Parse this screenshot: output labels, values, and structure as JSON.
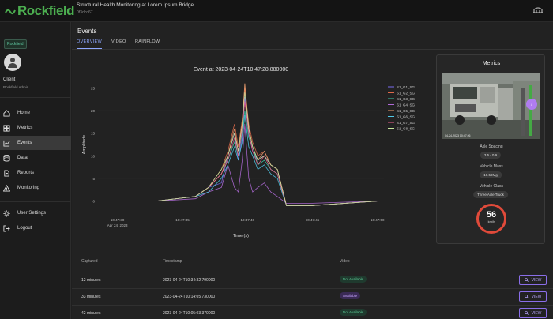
{
  "header": {
    "logo": "Rockfield",
    "title": "Structural Health Monitoring at Lorem Ipsum Bridge",
    "id": "0f3dcd67"
  },
  "sidebar": {
    "org": "Rockfield",
    "user_name": "Client",
    "user_role": "Rockfield Admin",
    "items": [
      {
        "label": "Home",
        "icon": "home-icon"
      },
      {
        "label": "Metrics",
        "icon": "grid-icon"
      },
      {
        "label": "Events",
        "icon": "line-chart-icon",
        "active": true
      },
      {
        "label": "Data",
        "icon": "database-icon"
      },
      {
        "label": "Reports",
        "icon": "document-icon"
      },
      {
        "label": "Monitoring",
        "icon": "warning-icon"
      },
      {
        "label": "User Settings",
        "icon": "gear-icon"
      },
      {
        "label": "Logout",
        "icon": "logout-icon"
      }
    ]
  },
  "main": {
    "title": "Events",
    "tabs": [
      "OVERVIEW",
      "VIDEO",
      "RAINFLOW"
    ]
  },
  "chart_data": {
    "type": "line",
    "title": "Event at 2023-04-24T10:47:28.880000",
    "xlabel": "Time (s)",
    "ylabel": "Amplitude",
    "x_ticks": [
      "10:47:30",
      "10:47:35",
      "10:47:40",
      "10:47:45",
      "10:47:50"
    ],
    "x_tick_sub": "Apr 24, 2023",
    "y_ticks": [
      0,
      5,
      10,
      15,
      20,
      25
    ],
    "ylim": [
      -2,
      27
    ],
    "legend_placement": "top-right",
    "x": [
      28.9,
      33,
      36,
      37,
      38,
      38.5,
      39,
      39.3,
      39.6,
      39.8,
      40.1,
      40.4,
      40.8,
      41.3,
      41.8,
      42.3,
      43,
      45,
      50
    ],
    "series": [
      {
        "name": "S1_G1_SG",
        "color": "#7b6cf0",
        "values": [
          0,
          0,
          1,
          3,
          4,
          10,
          15,
          9,
          14,
          23,
          15,
          11,
          9,
          10,
          8,
          7,
          -1,
          -1,
          0
        ]
      },
      {
        "name": "S1_G2_SG",
        "color": "#e06a4a",
        "values": [
          0,
          0,
          1,
          3,
          7,
          11,
          17,
          12,
          18,
          25,
          17,
          13,
          10,
          11,
          8,
          7,
          -1,
          -1,
          0
        ]
      },
      {
        "name": "S1_G3_SG",
        "color": "#3ec9a6",
        "values": [
          0,
          0,
          1,
          3,
          6,
          9,
          13,
          10,
          15,
          20,
          14,
          12,
          8,
          9,
          7,
          6,
          -1,
          -1,
          0
        ]
      },
      {
        "name": "S1_G4_SG",
        "color": "#b06ad8",
        "values": [
          0,
          0,
          0.5,
          2,
          3,
          8,
          3,
          2,
          9,
          17,
          5,
          2,
          3,
          4,
          2,
          1,
          -0.5,
          -0.5,
          0
        ]
      },
      {
        "name": "S1_G5_SG",
        "color": "#f0a070",
        "values": [
          0,
          0,
          1,
          3,
          6,
          10,
          16,
          11,
          17,
          26,
          16,
          12,
          9,
          11,
          8,
          7,
          -1,
          -1,
          0
        ]
      },
      {
        "name": "S1_G6_SG",
        "color": "#50c8e8",
        "values": [
          0,
          0,
          1,
          2,
          5,
          8,
          12,
          9,
          13,
          19,
          12,
          10,
          7,
          8,
          6,
          5,
          -1,
          -1,
          0
        ]
      },
      {
        "name": "S1_G7_SG",
        "color": "#f06090",
        "values": [
          0,
          0,
          1,
          3,
          6,
          9,
          14,
          10,
          16,
          22,
          15,
          11,
          8,
          10,
          7,
          6,
          -1,
          -1,
          0
        ]
      },
      {
        "name": "S1_G8_SG",
        "color": "#c8e8a0",
        "values": [
          0,
          0,
          1,
          3,
          7,
          10,
          15,
          11,
          17,
          24,
          16,
          12,
          9,
          10,
          8,
          7,
          -1,
          -1,
          0
        ]
      }
    ]
  },
  "metrics": {
    "title": "Metrics",
    "image_timestamp": "04-24-2023 10:47:26",
    "axle_spacing_label": "Axle Spacing",
    "axle_spacing_value": "3.5 / 0.9",
    "vehicle_mass_label": "Vehicle Mass",
    "vehicle_mass_value": "18.59Mg",
    "vehicle_class_label": "Vehicle Class",
    "vehicle_class_value": "Three Axle Truck",
    "speed_value": "56",
    "speed_unit": "km/h"
  },
  "table": {
    "headers": {
      "captured": "Captured",
      "timestamp": "Timestamp",
      "video": "Video"
    },
    "rows": [
      {
        "captured": "12 minutes",
        "timestamp": "2023-04-24T10:34:32.790000",
        "video": "Not Available",
        "video_state": "na",
        "action": "VIEW"
      },
      {
        "captured": "33 minutes",
        "timestamp": "2023-04-24T10:14:05.730000",
        "video": "Available",
        "video_state": "av",
        "action": "VIEW"
      },
      {
        "captured": "42 minutes",
        "timestamp": "2023-04-24T10:05:03.370000",
        "video": "Not Available",
        "video_state": "na",
        "action": "VIEW"
      }
    ]
  }
}
